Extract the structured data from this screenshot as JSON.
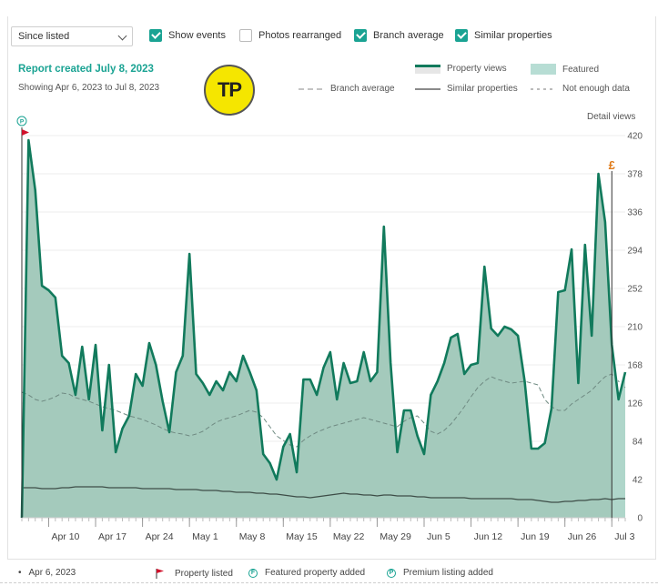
{
  "controls": {
    "range_select": "Since listed",
    "checkboxes": [
      {
        "label": "Show events",
        "checked": true
      },
      {
        "label": "Photos rearranged",
        "checked": false
      },
      {
        "label": "Branch average",
        "checked": true
      },
      {
        "label": "Similar properties",
        "checked": true
      }
    ]
  },
  "report": {
    "title": "Report created July 8, 2023",
    "subtitle": "Showing Apr 6, 2023 to Jul 8, 2023",
    "logo_text": "TP"
  },
  "legend": {
    "property_views": "Property views",
    "featured": "Featured",
    "branch_average": "Branch average",
    "similar_properties": "Similar properties",
    "not_enough_data": "Not enough data"
  },
  "axis": {
    "right_label": "Detail views",
    "yticks": [
      0,
      42,
      84,
      126,
      168,
      210,
      252,
      294,
      336,
      378,
      420
    ],
    "xticks": [
      {
        "label": "Apr 10",
        "day": 4
      },
      {
        "label": "Apr 17",
        "day": 11
      },
      {
        "label": "Apr 24",
        "day": 18
      },
      {
        "label": "May 1",
        "day": 25
      },
      {
        "label": "May 8",
        "day": 32
      },
      {
        "label": "May 15",
        "day": 39
      },
      {
        "label": "May 22",
        "day": 46
      },
      {
        "label": "May 29",
        "day": 53
      },
      {
        "label": "Jun 5",
        "day": 60
      },
      {
        "label": "Jun 12",
        "day": 67
      },
      {
        "label": "Jun 19",
        "day": 74
      },
      {
        "label": "Jun 26",
        "day": 81
      },
      {
        "label": "Jul 3",
        "day": 88
      }
    ]
  },
  "events": {
    "premium_icon": "P",
    "featured_icon": "£"
  },
  "footer": {
    "date": "Apr 6, 2023",
    "items": [
      {
        "label": "Property listed",
        "icon": "flag-icon"
      },
      {
        "label": "Featured property added",
        "icon": "F"
      },
      {
        "label": "Premium listing added",
        "icon": "P"
      }
    ]
  },
  "colors": {
    "accent": "#1aa393",
    "views_line": "#117a5c",
    "views_fill": "#9fc7b8",
    "flag": "#d0112b",
    "featured_marker": "#e07b1a"
  },
  "chart_data": {
    "type": "area",
    "x_start": "2023-04-06",
    "x_end": "2023-07-08",
    "ylim": [
      0,
      420
    ],
    "ylabel": "Detail views",
    "events": [
      {
        "type": "Property listed",
        "date": "2023-04-06"
      },
      {
        "type": "Premium listing added",
        "date": "2023-04-06"
      },
      {
        "type": "Featured property added",
        "date": "2023-07-03"
      }
    ],
    "series": [
      {
        "name": "Property views",
        "style": "solid-thick-area",
        "values": [
          0,
          415,
          360,
          255,
          250,
          242,
          178,
          170,
          135,
          188,
          130,
          190,
          96,
          168,
          72,
          98,
          112,
          158,
          145,
          192,
          168,
          128,
          94,
          160,
          178,
          290,
          158,
          148,
          135,
          150,
          140,
          160,
          150,
          178,
          160,
          140,
          70,
          60,
          42,
          78,
          92,
          50,
          152,
          152,
          135,
          165,
          182,
          130,
          170,
          148,
          150,
          182,
          150,
          160,
          320,
          170,
          72,
          118,
          118,
          90,
          70,
          135,
          150,
          170,
          198,
          202,
          158,
          168,
          170,
          276,
          208,
          200,
          210,
          207,
          200,
          150,
          76,
          76,
          82,
          120,
          248,
          250,
          295,
          148,
          300,
          200,
          378,
          325,
          190,
          130,
          160
        ],
        "featured_from_day": 88
      },
      {
        "name": "Branch average",
        "style": "dashed",
        "values": [
          138,
          135,
          130,
          128,
          130,
          133,
          137,
          136,
          132,
          130,
          128,
          125,
          122,
          120,
          118,
          115,
          112,
          110,
          108,
          105,
          102,
          98,
          95,
          93,
          92,
          90,
          92,
          95,
          100,
          105,
          108,
          110,
          112,
          115,
          118,
          116,
          110,
          100,
          90,
          85,
          80,
          78,
          85,
          90,
          94,
          97,
          100,
          102,
          104,
          106,
          108,
          110,
          108,
          106,
          104,
          102,
          100,
          106,
          110,
          112,
          104,
          95,
          92,
          96,
          103,
          112,
          122,
          133,
          143,
          150,
          155,
          152,
          150,
          148,
          149,
          150,
          148,
          146,
          130,
          122,
          118,
          118,
          125,
          130,
          135,
          140,
          148,
          155,
          158,
          150,
          143
        ],
        "not_enough_data_from_day": 88
      },
      {
        "name": "Similar properties",
        "style": "solid-thin",
        "values": [
          33,
          33,
          33,
          32,
          32,
          32,
          33,
          33,
          34,
          34,
          34,
          34,
          34,
          33,
          33,
          33,
          33,
          33,
          32,
          32,
          32,
          32,
          32,
          31,
          31,
          31,
          31,
          30,
          30,
          30,
          29,
          29,
          28,
          28,
          28,
          27,
          27,
          26,
          26,
          25,
          24,
          23,
          23,
          22,
          23,
          24,
          25,
          26,
          27,
          26,
          26,
          25,
          25,
          24,
          25,
          25,
          24,
          24,
          24,
          23,
          23,
          22,
          22,
          22,
          22,
          22,
          22,
          21,
          21,
          21,
          21,
          21,
          21,
          21,
          20,
          20,
          20,
          19,
          18,
          17,
          17,
          18,
          18,
          19,
          19,
          20,
          20,
          21,
          20,
          21,
          21
        ]
      }
    ]
  }
}
